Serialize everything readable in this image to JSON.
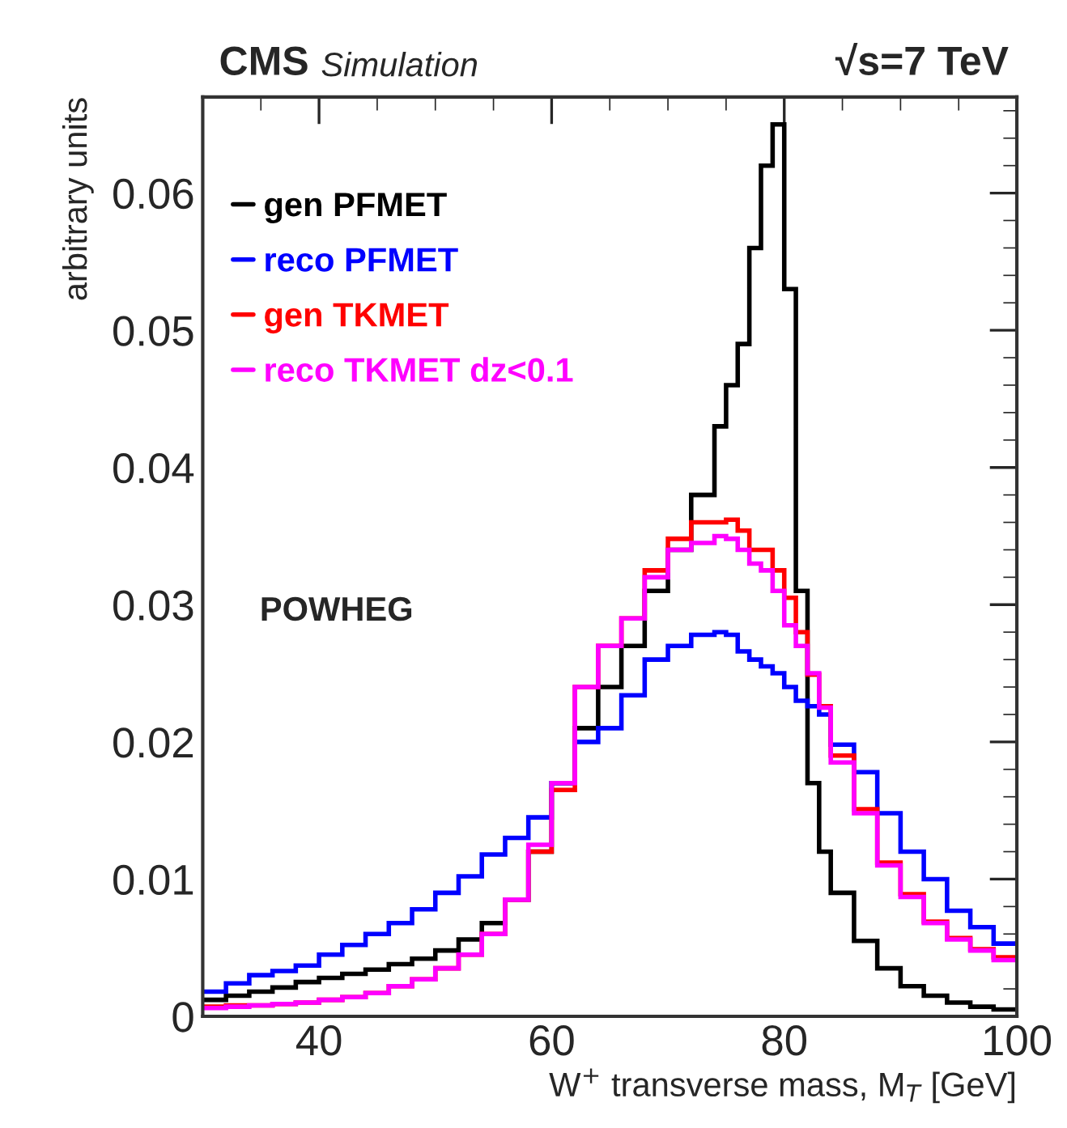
{
  "chart_data": {
    "type": "histogram",
    "title": "CMS",
    "subtitle": "Simulation",
    "xlabel": "W$^{+}$ transverse mass, M$_{T}$ [GeV]",
    "ylabel": "arbitrary units",
    "annotations": [
      "√s=7 TeV",
      "POWHEG"
    ],
    "bins": [
      30,
      32,
      34,
      36,
      38,
      40,
      42,
      44,
      46,
      48,
      50,
      52,
      54,
      56,
      58,
      60,
      62,
      64,
      66,
      68,
      70,
      72,
      74,
      75,
      76,
      77,
      78,
      79,
      80,
      81,
      82,
      83,
      84,
      86,
      88,
      90,
      92,
      94,
      96,
      98,
      100
    ],
    "series": [
      {
        "name": "gen PFMET",
        "color": "#000000",
        "values": [
          0.0012,
          0.0015,
          0.0018,
          0.0021,
          0.0025,
          0.0028,
          0.0031,
          0.0034,
          0.0038,
          0.0042,
          0.0048,
          0.0056,
          0.0068,
          0.0085,
          0.012,
          0.017,
          0.021,
          0.024,
          0.027,
          0.031,
          0.034,
          0.038,
          0.043,
          0.046,
          0.049,
          0.056,
          0.062,
          0.065,
          0.053,
          0.031,
          0.017,
          0.012,
          0.009,
          0.0055,
          0.0035,
          0.0022,
          0.0015,
          0.001,
          0.0007,
          0.0005
        ]
      },
      {
        "name": "reco PFMET",
        "color": "#0000ff",
        "values": [
          0.0018,
          0.0024,
          0.003,
          0.0033,
          0.0037,
          0.0045,
          0.0052,
          0.006,
          0.0068,
          0.0078,
          0.009,
          0.0102,
          0.0118,
          0.013,
          0.0145,
          0.017,
          0.02,
          0.021,
          0.0234,
          0.026,
          0.027,
          0.0278,
          0.028,
          0.0278,
          0.0266,
          0.026,
          0.0255,
          0.025,
          0.024,
          0.023,
          0.0226,
          0.022,
          0.0198,
          0.0178,
          0.0148,
          0.012,
          0.01,
          0.0077,
          0.0065,
          0.0053
        ]
      },
      {
        "name": "gen TKMET",
        "color": "#ff0000",
        "values": [
          0.0007,
          0.0008,
          0.0008,
          0.0009,
          0.001,
          0.0012,
          0.0014,
          0.0017,
          0.0022,
          0.0027,
          0.0035,
          0.0045,
          0.006,
          0.0085,
          0.012,
          0.0165,
          0.024,
          0.027,
          0.029,
          0.0325,
          0.0348,
          0.036,
          0.036,
          0.0362,
          0.0354,
          0.034,
          0.034,
          0.0325,
          0.0305,
          0.028,
          0.0249,
          0.0226,
          0.019,
          0.0151,
          0.0112,
          0.0089,
          0.0069,
          0.0057,
          0.0049,
          0.0043
        ]
      },
      {
        "name": "reco TKMET dz<0.1",
        "color": "#ff00ff",
        "values": [
          0.0006,
          0.0007,
          0.0008,
          0.0009,
          0.001,
          0.0012,
          0.0014,
          0.0017,
          0.0022,
          0.0027,
          0.0035,
          0.0045,
          0.006,
          0.0085,
          0.0125,
          0.017,
          0.024,
          0.027,
          0.029,
          0.032,
          0.034,
          0.0345,
          0.035,
          0.0348,
          0.034,
          0.033,
          0.0325,
          0.031,
          0.0285,
          0.027,
          0.025,
          0.0225,
          0.0185,
          0.0148,
          0.011,
          0.0087,
          0.0068,
          0.0056,
          0.0048,
          0.0041
        ]
      }
    ],
    "xlim": [
      30,
      100
    ],
    "ylim": [
      0,
      0.067
    ],
    "xticks": [
      40,
      60,
      80,
      100
    ],
    "yticks": [
      0,
      0.01,
      0.02,
      0.03,
      0.04,
      0.05,
      0.06
    ],
    "legend": "top left",
    "grid": false
  }
}
